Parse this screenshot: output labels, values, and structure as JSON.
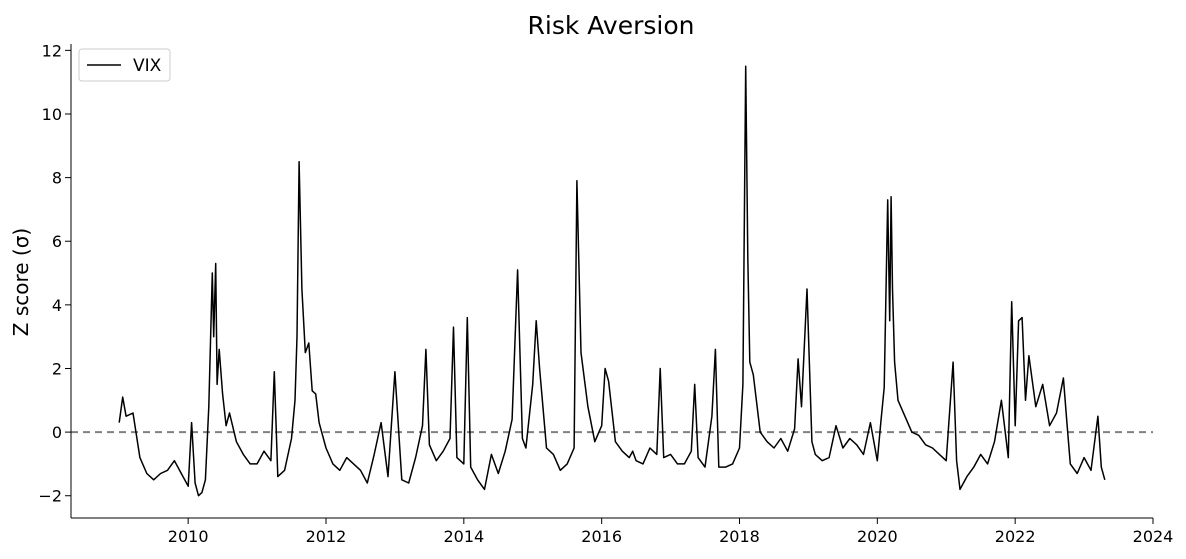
{
  "chart_data": {
    "type": "line",
    "title": "Risk Aversion",
    "xlabel": "",
    "ylabel": "Z score (σ)",
    "xlim": [
      2008.3,
      2024.0
    ],
    "ylim": [
      -2.7,
      12.2
    ],
    "x_ticks": [
      2010,
      2012,
      2014,
      2016,
      2018,
      2020,
      2022,
      2024
    ],
    "x_tick_labels": [
      "2010",
      "2012",
      "2014",
      "2016",
      "2018",
      "2020",
      "2022",
      "2024"
    ],
    "y_ticks": [
      -2,
      0,
      2,
      4,
      6,
      8,
      10,
      12
    ],
    "y_tick_labels": [
      "−2",
      "0",
      "2",
      "4",
      "6",
      "8",
      "10",
      "12"
    ],
    "grid": false,
    "legend": {
      "position": "top-left"
    },
    "reference_line": {
      "y": 0,
      "style": "dashed",
      "color": "#808080"
    },
    "series": [
      {
        "name": "VIX",
        "color": "#000000",
        "x": [
          2009.0,
          2009.05,
          2009.1,
          2009.2,
          2009.3,
          2009.4,
          2009.5,
          2009.6,
          2009.7,
          2009.8,
          2009.9,
          2010.0,
          2010.05,
          2010.1,
          2010.15,
          2010.2,
          2010.25,
          2010.3,
          2010.35,
          2010.37,
          2010.4,
          2010.42,
          2010.45,
          2010.5,
          2010.55,
          2010.6,
          2010.7,
          2010.8,
          2010.9,
          2011.0,
          2011.1,
          2011.2,
          2011.25,
          2011.3,
          2011.4,
          2011.5,
          2011.55,
          2011.58,
          2011.61,
          2011.65,
          2011.7,
          2011.75,
          2011.8,
          2011.85,
          2011.9,
          2012.0,
          2012.1,
          2012.2,
          2012.3,
          2012.4,
          2012.5,
          2012.6,
          2012.7,
          2012.8,
          2012.9,
          2013.0,
          2013.1,
          2013.2,
          2013.3,
          2013.4,
          2013.45,
          2013.5,
          2013.6,
          2013.7,
          2013.8,
          2013.85,
          2013.9,
          2014.0,
          2014.05,
          2014.1,
          2014.2,
          2014.3,
          2014.4,
          2014.5,
          2014.6,
          2014.7,
          2014.78,
          2014.85,
          2014.9,
          2015.0,
          2015.05,
          2015.1,
          2015.2,
          2015.3,
          2015.4,
          2015.5,
          2015.6,
          2015.64,
          2015.7,
          2015.8,
          2015.9,
          2016.0,
          2016.05,
          2016.1,
          2016.2,
          2016.3,
          2016.4,
          2016.45,
          2016.5,
          2016.6,
          2016.7,
          2016.8,
          2016.85,
          2016.9,
          2017.0,
          2017.1,
          2017.2,
          2017.3,
          2017.35,
          2017.4,
          2017.5,
          2017.6,
          2017.65,
          2017.7,
          2017.8,
          2017.9,
          2018.0,
          2018.05,
          2018.09,
          2018.12,
          2018.15,
          2018.2,
          2018.3,
          2018.4,
          2018.5,
          2018.6,
          2018.7,
          2018.8,
          2018.85,
          2018.9,
          2018.98,
          2019.05,
          2019.1,
          2019.2,
          2019.3,
          2019.4,
          2019.5,
          2019.6,
          2019.7,
          2019.8,
          2019.9,
          2020.0,
          2020.05,
          2020.1,
          2020.15,
          2020.18,
          2020.2,
          2020.22,
          2020.25,
          2020.3,
          2020.4,
          2020.5,
          2020.6,
          2020.7,
          2020.8,
          2020.9,
          2021.0,
          2021.1,
          2021.15,
          2021.2,
          2021.3,
          2021.4,
          2021.5,
          2021.6,
          2021.7,
          2021.8,
          2021.9,
          2021.95,
          2022.0,
          2022.05,
          2022.1,
          2022.15,
          2022.2,
          2022.3,
          2022.4,
          2022.5,
          2022.6,
          2022.7,
          2022.75,
          2022.8,
          2022.9,
          2023.0,
          2023.1,
          2023.2,
          2023.25,
          2023.3
        ],
        "values": [
          0.3,
          1.1,
          0.5,
          0.6,
          -0.8,
          -1.3,
          -1.5,
          -1.3,
          -1.2,
          -0.9,
          -1.3,
          -1.7,
          0.3,
          -1.6,
          -2.0,
          -1.9,
          -1.5,
          0.8,
          5.0,
          3.0,
          5.3,
          1.5,
          2.6,
          1.2,
          0.2,
          0.6,
          -0.3,
          -0.7,
          -1.0,
          -1.0,
          -0.6,
          -0.9,
          1.9,
          -1.4,
          -1.2,
          -0.2,
          1.0,
          3.0,
          8.5,
          4.5,
          2.5,
          2.8,
          1.3,
          1.2,
          0.3,
          -0.5,
          -1.0,
          -1.2,
          -0.8,
          -1.0,
          -1.2,
          -1.6,
          -0.7,
          0.3,
          -1.4,
          1.9,
          -1.5,
          -1.6,
          -0.8,
          0.2,
          2.6,
          -0.4,
          -0.9,
          -0.6,
          -0.2,
          3.3,
          -0.8,
          -1.0,
          3.6,
          -1.1,
          -1.5,
          -1.8,
          -0.7,
          -1.3,
          -0.6,
          0.4,
          5.1,
          -0.2,
          -0.5,
          1.5,
          3.5,
          2.0,
          -0.5,
          -0.7,
          -1.2,
          -1.0,
          -0.5,
          7.9,
          2.5,
          0.8,
          -0.3,
          0.2,
          2.0,
          1.6,
          -0.3,
          -0.6,
          -0.8,
          -0.6,
          -0.9,
          -1.0,
          -0.5,
          -0.7,
          2.0,
          -0.8,
          -0.7,
          -1.0,
          -1.0,
          -0.6,
          1.5,
          -0.8,
          -1.1,
          0.5,
          2.6,
          -1.1,
          -1.1,
          -1.0,
          -0.5,
          1.5,
          11.5,
          5.5,
          2.2,
          1.8,
          0.0,
          -0.3,
          -0.5,
          -0.2,
          -0.6,
          0.1,
          2.3,
          0.8,
          4.5,
          -0.3,
          -0.7,
          -0.9,
          -0.8,
          0.2,
          -0.5,
          -0.2,
          -0.4,
          -0.7,
          0.3,
          -0.9,
          0.3,
          1.4,
          7.3,
          3.5,
          7.4,
          4.5,
          2.2,
          1.0,
          0.5,
          0.0,
          -0.1,
          -0.4,
          -0.5,
          -0.7,
          -0.9,
          2.2,
          -0.9,
          -1.8,
          -1.4,
          -1.1,
          -0.7,
          -1.0,
          -0.3,
          1.0,
          -0.8,
          4.1,
          0.2,
          3.5,
          3.6,
          1.0,
          2.4,
          0.8,
          1.5,
          0.2,
          0.6,
          1.7,
          0.3,
          -1.0,
          -1.3,
          -0.8,
          -1.2,
          0.5,
          -1.1,
          -1.5
        ]
      }
    ]
  }
}
